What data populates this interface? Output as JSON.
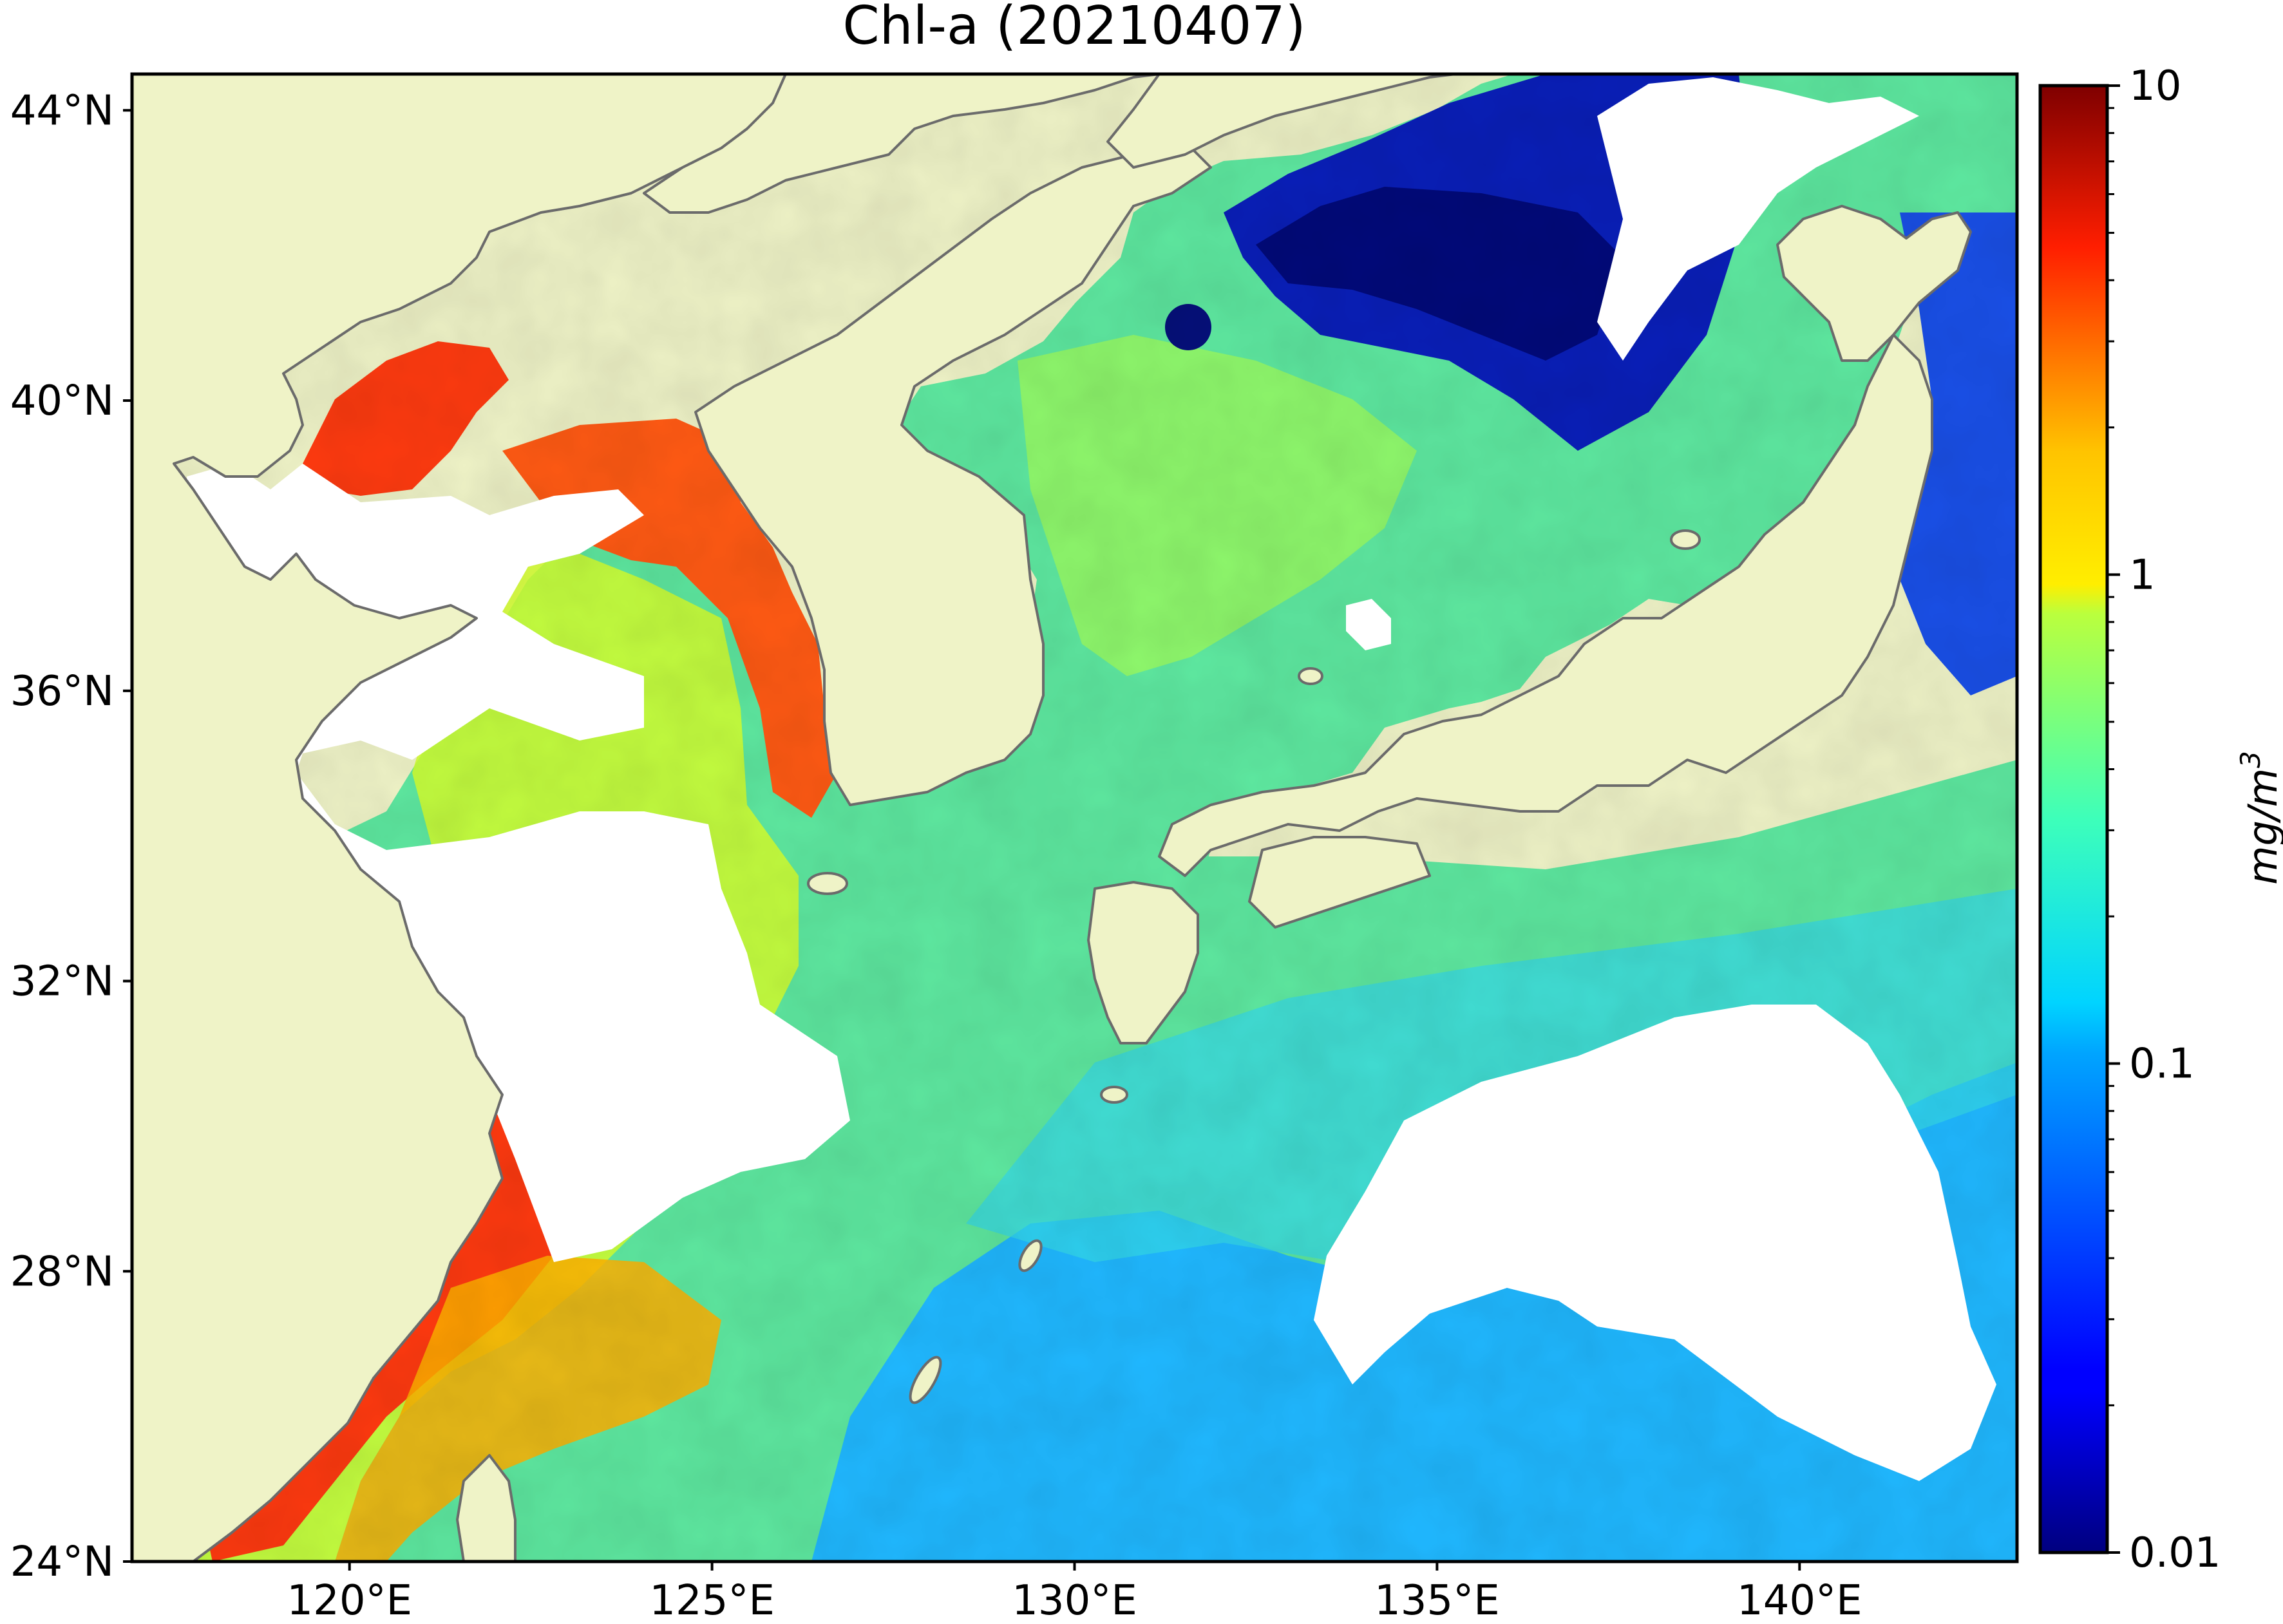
{
  "title": "Chl-a (20210407)",
  "map": {
    "lon_range": [
      117,
      143
    ],
    "lat_range": [
      24,
      44.5
    ],
    "land_color": "#eff3c7",
    "coast_color": "#6b6b6b",
    "no_data_color": "#ffffff",
    "lat_ticks": [
      {
        "value": 44,
        "label": "44°N"
      },
      {
        "value": 40,
        "label": "40°N"
      },
      {
        "value": 36,
        "label": "36°N"
      },
      {
        "value": 32,
        "label": "32°N"
      },
      {
        "value": 28,
        "label": "28°N"
      },
      {
        "value": 24,
        "label": "24°N"
      }
    ],
    "lon_ticks": [
      {
        "value": 120,
        "label": "120°E"
      },
      {
        "value": 125,
        "label": "125°E"
      },
      {
        "value": 130,
        "label": "130°E"
      },
      {
        "value": 135,
        "label": "135°E"
      },
      {
        "value": 140,
        "label": "140°E"
      }
    ]
  },
  "colorbar": {
    "scale": "log",
    "range": [
      0.01,
      10
    ],
    "colormap": "jet",
    "units_label": "mg/m",
    "units_superscript": "3",
    "major_ticks": [
      {
        "value": 10,
        "label": "10"
      },
      {
        "value": 1,
        "label": "1"
      },
      {
        "value": 0.1,
        "label": "0.1"
      },
      {
        "value": 0.01,
        "label": "0.01"
      }
    ],
    "minor_ticks": [
      0.02,
      0.03,
      0.04,
      0.05,
      0.06,
      0.07,
      0.08,
      0.09,
      0.2,
      0.3,
      0.4,
      0.5,
      0.6,
      0.7,
      0.8,
      0.9,
      2,
      3,
      4,
      5,
      6,
      7,
      8,
      9
    ]
  }
}
